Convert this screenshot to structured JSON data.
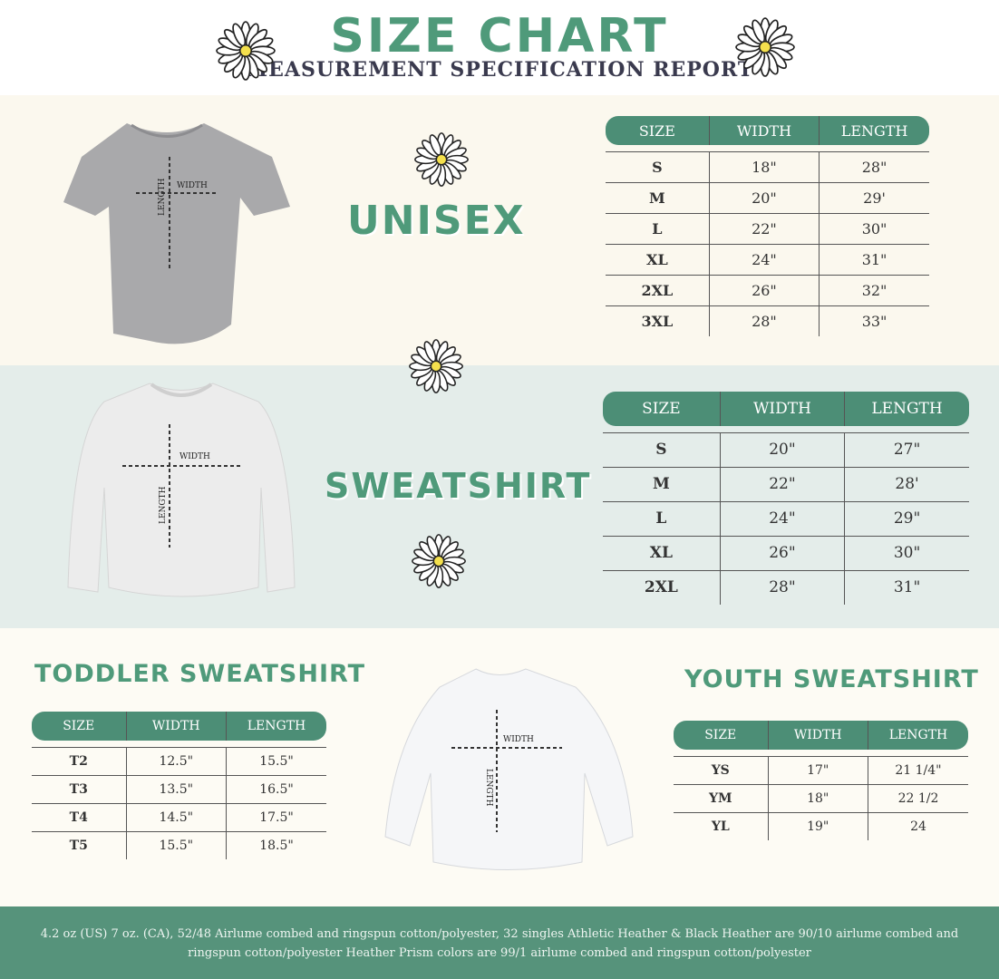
{
  "header": {
    "title": "SIZE CHART",
    "subtitle": "MEASUREMENT SPECIFICATION REPORT"
  },
  "colors": {
    "accent": "#4f9a7a",
    "header_fill": "#4c8e76",
    "band": "#e4edea",
    "background": "#fdfbf4"
  },
  "diagram_labels": {
    "width": "WIDTH",
    "length": "LENGTH"
  },
  "unisex": {
    "title": "UNISEX",
    "columns": [
      "SIZE",
      "WIDTH",
      "LENGTH"
    ],
    "rows": [
      [
        "S",
        "18\"",
        "28\""
      ],
      [
        "M",
        "20\"",
        "29'"
      ],
      [
        "L",
        "22\"",
        "30\""
      ],
      [
        "XL",
        "24\"",
        "31\""
      ],
      [
        "2XL",
        "26\"",
        "32\""
      ],
      [
        "3XL",
        "28\"",
        "33\""
      ]
    ]
  },
  "sweatshirt": {
    "title": "SWEATSHIRT",
    "columns": [
      "SIZE",
      "WIDTH",
      "LENGTH"
    ],
    "rows": [
      [
        "S",
        "20\"",
        "27\""
      ],
      [
        "M",
        "22\"",
        "28'"
      ],
      [
        "L",
        "24\"",
        "29\""
      ],
      [
        "XL",
        "26\"",
        "30\""
      ],
      [
        "2XL",
        "28\"",
        "31\""
      ]
    ]
  },
  "toddler": {
    "title": "TODDLER SWEATSHIRT",
    "columns": [
      "SIZE",
      "WIDTH",
      "LENGTH"
    ],
    "rows": [
      [
        "T2",
        "12.5\"",
        "15.5\""
      ],
      [
        "T3",
        "13.5\"",
        "16.5\""
      ],
      [
        "T4",
        "14.5\"",
        "17.5\""
      ],
      [
        "T5",
        "15.5\"",
        "18.5\""
      ]
    ]
  },
  "youth": {
    "title": "YOUTH SWEATSHIRT",
    "columns": [
      "SIZE",
      "WIDTH",
      "LENGTH"
    ],
    "rows": [
      [
        "YS",
        "17\"",
        "21 1/4\""
      ],
      [
        "YM",
        "18\"",
        "22 1/2"
      ],
      [
        "YL",
        "19\"",
        "24"
      ]
    ]
  },
  "footer": {
    "text": "4.2 oz (US) 7 oz. (CA), 52/48 Airlume combed and ringspun cotton/polyester, 32 singles Athletic Heather & Black Heather are 90/10 airlume combed and ringspun cotton/polyester Heather Prism colors are 99/1 airlume combed and ringspun cotton/polyester"
  }
}
